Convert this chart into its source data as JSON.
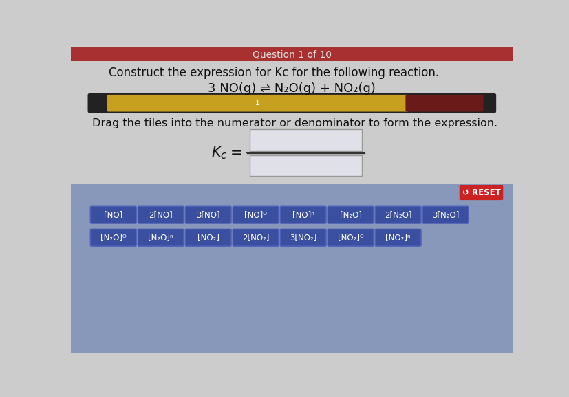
{
  "title_bar_text": "Question 1 of 10",
  "title_bar_color": "#a83030",
  "bg_color": "#cccccc",
  "bottom_bg_color": "#8898bb",
  "instruction_text": "Construct the expression for Kc for the following reaction.",
  "reaction_text": "3 NO(g) ⇌ N₂O(g) + NO₂(g)",
  "drag_instruction": "Drag the tiles into the numerator or denominator to form the expression.",
  "progress_bar_dark_left": "#222222",
  "progress_bar_fill": "#c8a020",
  "progress_bar_dark_right": "#6b1a1a",
  "reset_btn_color": "#cc2222",
  "reset_text": "↺ RESET",
  "tile_bg_color": "#3a4fa0",
  "tile_text_color": "#ffffff",
  "tiles_row1": [
    "[NO]",
    "2[NO]",
    "3[NO]",
    "[NO]ᴼ",
    "[NO]ⁿ",
    "[N₂O]",
    "2[N₂O]",
    "3[N₂O]"
  ],
  "tiles_row2": [
    "[N₂O]ᴼ",
    "[N₂O]ⁿ",
    "[NO₂]",
    "2[NO₂]",
    "3[NO₂]",
    "[NO₂]ᴼ",
    "[NO₂]ⁿ"
  ],
  "box_fill": "#e0e0e8",
  "box_edge": "#999999",
  "fraction_line_color": "#333333",
  "tile_edge_color": "#5060b8"
}
